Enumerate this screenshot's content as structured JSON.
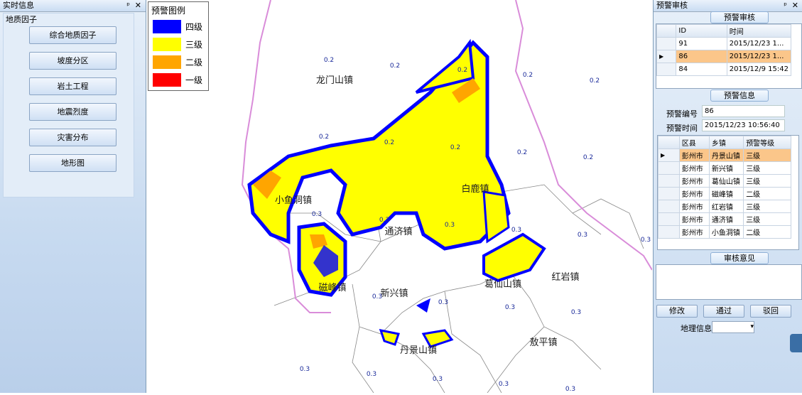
{
  "left_panel": {
    "title": "实时信息",
    "pin": "ᵖ",
    "close": "✕",
    "group": "地质因子",
    "buttons": [
      "综合地质因子",
      "坡度分区",
      "岩土工程",
      "地震烈度",
      "灾害分布",
      "地形图"
    ]
  },
  "map": {
    "legend": {
      "title": "预警图例",
      "items": [
        {
          "label": "四级",
          "color": "#0000ff"
        },
        {
          "label": "三级",
          "color": "#ffff00"
        },
        {
          "label": "二级",
          "color": "#ffa500"
        },
        {
          "label": "一级",
          "color": "#ff0000"
        }
      ]
    },
    "towns": [
      "龙门山镇",
      "小鱼洞镇",
      "通济镇",
      "白鹿镇",
      "磁峰镇",
      "新兴镇",
      "葛仙山镇",
      "红岩镇",
      "丹景山镇",
      "敖平镇"
    ],
    "value_labels": [
      "0.2",
      "0.2",
      "0.2",
      "0.2",
      "0.2",
      "0.2",
      "0.2",
      "0.2",
      "0.2",
      "0.2",
      "0.3",
      "0.3",
      "0.3",
      "0.3",
      "0.3",
      "0.3",
      "0.3",
      "0.3",
      "0.3",
      "0.3",
      "0.3",
      "0.3",
      "0.3",
      "0.3",
      "0.3"
    ]
  },
  "right_panel": {
    "title": "预警审核",
    "pin": "ᵖ",
    "close": "✕",
    "review_group": "预警审核",
    "review_grid": {
      "columns": [
        "ID",
        "时间"
      ],
      "rows": [
        [
          "91",
          "2015/12/23 1..."
        ],
        [
          "86",
          "2015/12/23 1..."
        ],
        [
          "84",
          "2015/12/9 15:42"
        ]
      ]
    },
    "info_group": "预警信息",
    "fields": [
      {
        "label": "预警编号",
        "value": "86"
      },
      {
        "label": "预警时间",
        "value": "2015/12/23 10:56:40"
      }
    ],
    "town_grid": {
      "columns": [
        "区县",
        "乡镇",
        "预警等级"
      ],
      "rows": [
        [
          "彭州市",
          "丹景山镇",
          "三级"
        ],
        [
          "彭州市",
          "新兴镇",
          "三级"
        ],
        [
          "彭州市",
          "葛仙山镇",
          "三级"
        ],
        [
          "彭州市",
          "磁峰镇",
          "二级"
        ],
        [
          "彭州市",
          "红岩镇",
          "三级"
        ],
        [
          "彭州市",
          "通济镇",
          "三级"
        ],
        [
          "彭州市",
          "小鱼洞镇",
          "二级"
        ]
      ]
    },
    "opinion_group": "审核意见",
    "actions": [
      "修改",
      "通过",
      "驳回"
    ],
    "geo_label": "地理信息"
  }
}
